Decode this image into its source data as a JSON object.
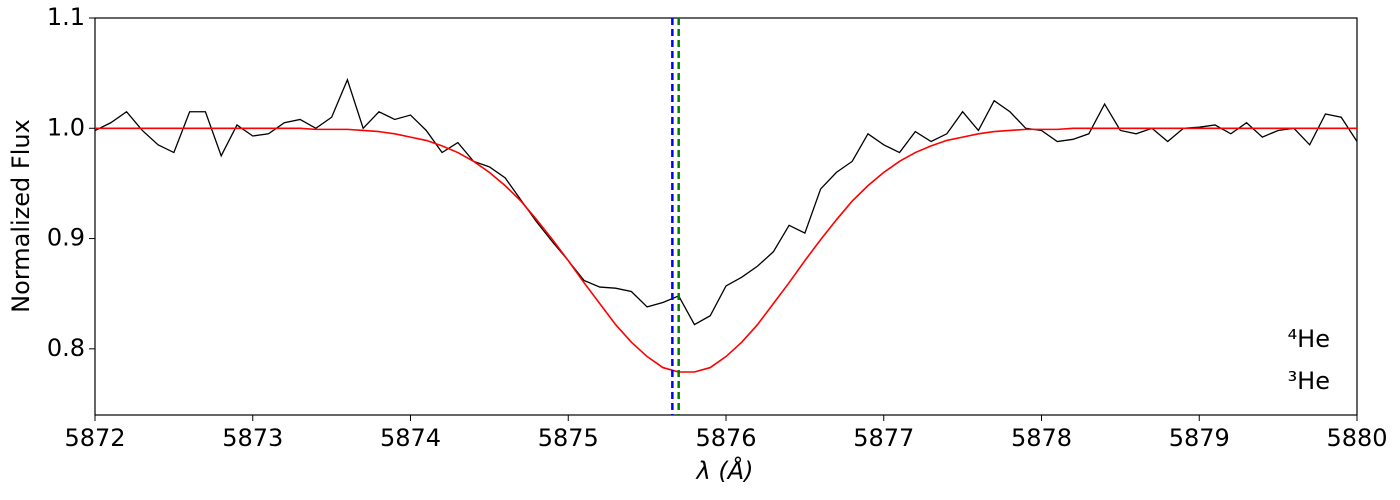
{
  "chart_data": {
    "type": "line",
    "xlabel": "λ (Å)",
    "ylabel": "Normalized Flux",
    "x": [
      5872.0,
      5872.1,
      5872.2,
      5872.3,
      5872.4,
      5872.5,
      5872.6,
      5872.7,
      5872.8,
      5872.9,
      5873.0,
      5873.1,
      5873.2,
      5873.3,
      5873.4,
      5873.5,
      5873.6,
      5873.7,
      5873.8,
      5873.9,
      5874.0,
      5874.1,
      5874.2,
      5874.3,
      5874.4,
      5874.5,
      5874.6,
      5874.7,
      5874.8,
      5874.9,
      5875.0,
      5875.1,
      5875.2,
      5875.3,
      5875.4,
      5875.5,
      5875.6,
      5875.7,
      5875.8,
      5875.9,
      5876.0,
      5876.1,
      5876.2,
      5876.3,
      5876.4,
      5876.5,
      5876.6,
      5876.7,
      5876.8,
      5876.9,
      5877.0,
      5877.1,
      5877.2,
      5877.3,
      5877.4,
      5877.5,
      5877.6,
      5877.7,
      5877.8,
      5877.9,
      5878.0,
      5878.1,
      5878.2,
      5878.3,
      5878.4,
      5878.5,
      5878.6,
      5878.7,
      5878.8,
      5878.9,
      5879.0,
      5879.1,
      5879.2,
      5879.3,
      5879.4,
      5879.5,
      5879.6,
      5879.7,
      5879.8,
      5879.9,
      5880.0
    ],
    "series": [
      {
        "color": "#000000",
        "values": [
          0.998,
          1.005,
          1.015,
          0.998,
          0.985,
          0.978,
          1.015,
          1.015,
          0.975,
          1.003,
          0.993,
          0.995,
          1.005,
          1.008,
          1.0,
          1.01,
          1.044,
          1.0,
          1.015,
          1.008,
          1.012,
          0.998,
          0.978,
          0.987,
          0.97,
          0.965,
          0.955,
          0.935,
          0.915,
          0.897,
          0.88,
          0.862,
          0.856,
          0.855,
          0.852,
          0.838,
          0.842,
          0.848,
          0.822,
          0.83,
          0.857,
          0.865,
          0.875,
          0.888,
          0.912,
          0.905,
          0.945,
          0.96,
          0.97,
          0.995,
          0.985,
          0.978,
          0.997,
          0.988,
          0.995,
          1.015,
          0.998,
          1.025,
          1.015,
          1.0,
          0.998,
          0.988,
          0.99,
          0.995,
          1.022,
          0.998,
          0.995,
          1.0,
          0.988,
          1.0,
          1.001,
          1.003,
          0.995,
          1.005,
          0.992,
          0.998,
          1.0,
          0.985,
          1.013,
          1.01,
          0.988
        ]
      },
      {
        "color": "#ff0000",
        "values": [
          1.0,
          1.0,
          1.0,
          1.0,
          1.0,
          1.0,
          1.0,
          1.0,
          1.0,
          1.0,
          1.0,
          1.0,
          1.0,
          1.0,
          0.999,
          0.999,
          0.999,
          0.998,
          0.997,
          0.995,
          0.992,
          0.989,
          0.984,
          0.978,
          0.97,
          0.96,
          0.948,
          0.934,
          0.917,
          0.899,
          0.88,
          0.86,
          0.841,
          0.822,
          0.806,
          0.793,
          0.783,
          0.779,
          0.779,
          0.783,
          0.793,
          0.806,
          0.822,
          0.841,
          0.86,
          0.88,
          0.899,
          0.917,
          0.934,
          0.948,
          0.96,
          0.97,
          0.978,
          0.984,
          0.989,
          0.992,
          0.995,
          0.997,
          0.998,
          0.999,
          0.999,
          0.999,
          1.0,
          1.0,
          1.0,
          1.0,
          1.0,
          1.0,
          1.0,
          1.0,
          1.0,
          1.0,
          1.0,
          1.0,
          1.0,
          1.0,
          1.0,
          1.0,
          1.0,
          1.0,
          1.0
        ]
      }
    ],
    "vlines": [
      {
        "x": 5875.66,
        "color": "#0000ff",
        "label": "⁴He"
      },
      {
        "x": 5875.7,
        "color": "#008000",
        "label": "³He"
      }
    ],
    "xlim": [
      5872,
      5880
    ],
    "xticks": [
      5872,
      5873,
      5874,
      5875,
      5876,
      5877,
      5878,
      5879,
      5880
    ],
    "ylim": [
      0.74,
      1.1
    ],
    "yticks": [
      0.8,
      0.9,
      {
        "value": 1,
        "label": "1.0"
      },
      1.1
    ]
  }
}
